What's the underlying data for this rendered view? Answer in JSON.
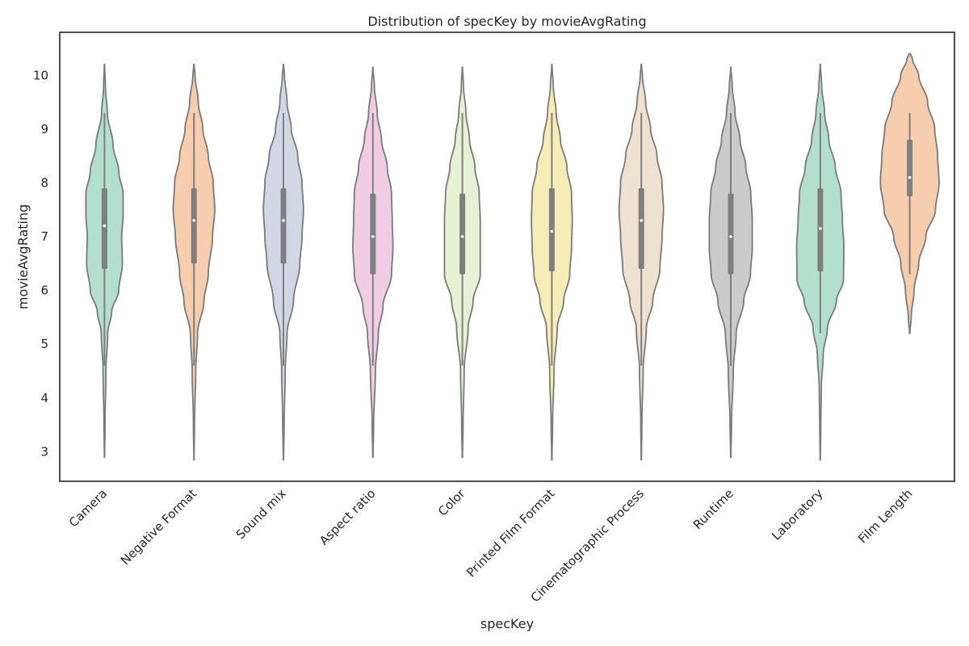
{
  "chart_data": {
    "type": "violin",
    "title": "Distribution of specKey by movieAvgRating",
    "xlabel": "specKey",
    "ylabel": "movieAvgRating",
    "ylim": [
      2.45,
      10.8
    ],
    "yticks": [
      3,
      4,
      5,
      6,
      7,
      8,
      9,
      10
    ],
    "grid": false,
    "inner": "box",
    "categories": [
      "Camera",
      "Negative Format",
      "Sound mix",
      "Aspect ratio",
      "Color",
      "Printed Film Format",
      "Cinematographic Process",
      "Runtime",
      "Laboratory",
      "Film Length"
    ],
    "series": [
      {
        "category": "Camera",
        "color": "#b3dfce",
        "min": 2.9,
        "max": 10.2,
        "whisker_low": 4.6,
        "whisker_high": 9.3,
        "q1": 6.4,
        "median": 7.2,
        "q3": 7.9,
        "profile": [
          [
            2.9,
            0.004
          ],
          [
            3.5,
            0.015
          ],
          [
            4.5,
            0.04
          ],
          [
            5.2,
            0.09
          ],
          [
            5.6,
            0.2
          ],
          [
            6.0,
            0.4
          ],
          [
            6.5,
            0.5
          ],
          [
            7.0,
            0.48
          ],
          [
            7.4,
            0.52
          ],
          [
            7.8,
            0.52
          ],
          [
            8.2,
            0.4
          ],
          [
            8.7,
            0.24
          ],
          [
            9.3,
            0.08
          ],
          [
            9.8,
            0.025
          ],
          [
            10.2,
            0.004
          ]
        ]
      },
      {
        "category": "Negative Format",
        "color": "#f6cdad",
        "min": 2.85,
        "max": 10.2,
        "whisker_low": 4.6,
        "whisker_high": 9.3,
        "q1": 6.5,
        "median": 7.3,
        "q3": 7.9,
        "profile": [
          [
            2.85,
            0.004
          ],
          [
            3.5,
            0.015
          ],
          [
            4.5,
            0.05
          ],
          [
            5.2,
            0.1
          ],
          [
            5.8,
            0.28
          ],
          [
            6.3,
            0.4
          ],
          [
            7.0,
            0.52
          ],
          [
            7.5,
            0.58
          ],
          [
            8.0,
            0.54
          ],
          [
            8.5,
            0.4
          ],
          [
            9.0,
            0.25
          ],
          [
            9.5,
            0.12
          ],
          [
            10.0,
            0.03
          ],
          [
            10.2,
            0.004
          ]
        ]
      },
      {
        "category": "Sound mix",
        "color": "#d0d8e6",
        "min": 2.85,
        "max": 10.2,
        "whisker_low": 4.6,
        "whisker_high": 9.3,
        "q1": 6.5,
        "median": 7.3,
        "q3": 7.9,
        "profile": [
          [
            2.85,
            0.004
          ],
          [
            3.5,
            0.02
          ],
          [
            4.5,
            0.05
          ],
          [
            5.2,
            0.1
          ],
          [
            5.8,
            0.28
          ],
          [
            6.5,
            0.46
          ],
          [
            7.0,
            0.52
          ],
          [
            7.5,
            0.56
          ],
          [
            8.0,
            0.52
          ],
          [
            8.5,
            0.4
          ],
          [
            9.0,
            0.22
          ],
          [
            9.5,
            0.1
          ],
          [
            10.0,
            0.03
          ],
          [
            10.2,
            0.004
          ]
        ]
      },
      {
        "category": "Aspect ratio",
        "color": "#f1cde5",
        "min": 2.9,
        "max": 10.15,
        "whisker_low": 4.6,
        "whisker_high": 9.3,
        "q1": 6.3,
        "median": 7.0,
        "q3": 7.8,
        "profile": [
          [
            2.9,
            0.004
          ],
          [
            3.5,
            0.02
          ],
          [
            4.5,
            0.07
          ],
          [
            5.2,
            0.15
          ],
          [
            5.7,
            0.28
          ],
          [
            6.3,
            0.52
          ],
          [
            6.8,
            0.56
          ],
          [
            7.3,
            0.54
          ],
          [
            7.8,
            0.52
          ],
          [
            8.3,
            0.4
          ],
          [
            8.8,
            0.24
          ],
          [
            9.3,
            0.12
          ],
          [
            9.8,
            0.04
          ],
          [
            10.15,
            0.004
          ]
        ]
      },
      {
        "category": "Color",
        "color": "#e5f2d3",
        "min": 2.9,
        "max": 10.15,
        "whisker_low": 4.6,
        "whisker_high": 9.3,
        "q1": 6.3,
        "median": 7.0,
        "q3": 7.8,
        "profile": [
          [
            2.9,
            0.004
          ],
          [
            3.5,
            0.02
          ],
          [
            4.5,
            0.05
          ],
          [
            5.3,
            0.16
          ],
          [
            5.8,
            0.3
          ],
          [
            6.3,
            0.5
          ],
          [
            6.8,
            0.5
          ],
          [
            7.3,
            0.5
          ],
          [
            7.8,
            0.47
          ],
          [
            8.3,
            0.35
          ],
          [
            8.8,
            0.2
          ],
          [
            9.3,
            0.1
          ],
          [
            9.8,
            0.03
          ],
          [
            10.15,
            0.004
          ]
        ]
      },
      {
        "category": "Printed Film Format",
        "color": "#f6ecb5",
        "min": 2.85,
        "max": 10.2,
        "whisker_low": 4.6,
        "whisker_high": 9.3,
        "q1": 6.35,
        "median": 7.1,
        "q3": 7.9,
        "profile": [
          [
            2.85,
            0.004
          ],
          [
            3.5,
            0.02
          ],
          [
            4.5,
            0.06
          ],
          [
            5.3,
            0.15
          ],
          [
            5.8,
            0.33
          ],
          [
            6.3,
            0.5
          ],
          [
            6.8,
            0.55
          ],
          [
            7.3,
            0.57
          ],
          [
            7.8,
            0.55
          ],
          [
            8.3,
            0.42
          ],
          [
            8.8,
            0.24
          ],
          [
            9.3,
            0.12
          ],
          [
            9.8,
            0.04
          ],
          [
            10.2,
            0.004
          ]
        ]
      },
      {
        "category": "Cinematographic Process",
        "color": "#eee1d0",
        "min": 2.85,
        "max": 10.2,
        "whisker_low": 4.6,
        "whisker_high": 9.3,
        "q1": 6.4,
        "median": 7.3,
        "q3": 7.9,
        "profile": [
          [
            2.85,
            0.004
          ],
          [
            3.5,
            0.015
          ],
          [
            4.5,
            0.05
          ],
          [
            5.3,
            0.14
          ],
          [
            5.8,
            0.32
          ],
          [
            6.4,
            0.52
          ],
          [
            7.0,
            0.58
          ],
          [
            7.5,
            0.62
          ],
          [
            8.0,
            0.58
          ],
          [
            8.5,
            0.44
          ],
          [
            9.0,
            0.26
          ],
          [
            9.5,
            0.12
          ],
          [
            10.0,
            0.03
          ],
          [
            10.2,
            0.004
          ]
        ]
      },
      {
        "category": "Runtime",
        "color": "#cbcbcb",
        "min": 2.9,
        "max": 10.15,
        "whisker_low": 4.6,
        "whisker_high": 9.3,
        "q1": 6.3,
        "median": 7.0,
        "q3": 7.8,
        "profile": [
          [
            2.9,
            0.004
          ],
          [
            3.5,
            0.02
          ],
          [
            4.5,
            0.07
          ],
          [
            5.2,
            0.15
          ],
          [
            5.8,
            0.36
          ],
          [
            6.3,
            0.55
          ],
          [
            6.8,
            0.6
          ],
          [
            7.3,
            0.6
          ],
          [
            7.8,
            0.56
          ],
          [
            8.3,
            0.42
          ],
          [
            8.8,
            0.26
          ],
          [
            9.3,
            0.12
          ],
          [
            9.8,
            0.04
          ],
          [
            10.15,
            0.004
          ]
        ]
      },
      {
        "category": "Laboratory",
        "color": "#b3dfce",
        "min": 2.85,
        "max": 10.2,
        "whisker_low": 5.2,
        "whisker_high": 9.3,
        "q1": 6.35,
        "median": 7.15,
        "q3": 7.9,
        "profile": [
          [
            2.85,
            0.004
          ],
          [
            3.5,
            0.015
          ],
          [
            4.2,
            0.03
          ],
          [
            4.8,
            0.08
          ],
          [
            5.3,
            0.2
          ],
          [
            5.8,
            0.45
          ],
          [
            6.2,
            0.65
          ],
          [
            6.8,
            0.66
          ],
          [
            7.3,
            0.62
          ],
          [
            7.8,
            0.58
          ],
          [
            8.3,
            0.42
          ],
          [
            8.8,
            0.24
          ],
          [
            9.3,
            0.12
          ],
          [
            9.8,
            0.04
          ],
          [
            10.2,
            0.004
          ]
        ]
      },
      {
        "category": "Film Length",
        "color": "#f6cdad",
        "min": 5.2,
        "max": 10.4,
        "whisker_low": 6.3,
        "whisker_high": 9.3,
        "q1": 7.75,
        "median": 8.1,
        "q3": 8.8,
        "profile": [
          [
            5.2,
            0.004
          ],
          [
            5.5,
            0.04
          ],
          [
            6.0,
            0.12
          ],
          [
            6.5,
            0.25
          ],
          [
            7.0,
            0.45
          ],
          [
            7.5,
            0.72
          ],
          [
            8.0,
            0.82
          ],
          [
            8.5,
            0.78
          ],
          [
            9.0,
            0.7
          ],
          [
            9.5,
            0.5
          ],
          [
            10.0,
            0.25
          ],
          [
            10.3,
            0.08
          ],
          [
            10.4,
            0.02
          ]
        ]
      }
    ]
  }
}
